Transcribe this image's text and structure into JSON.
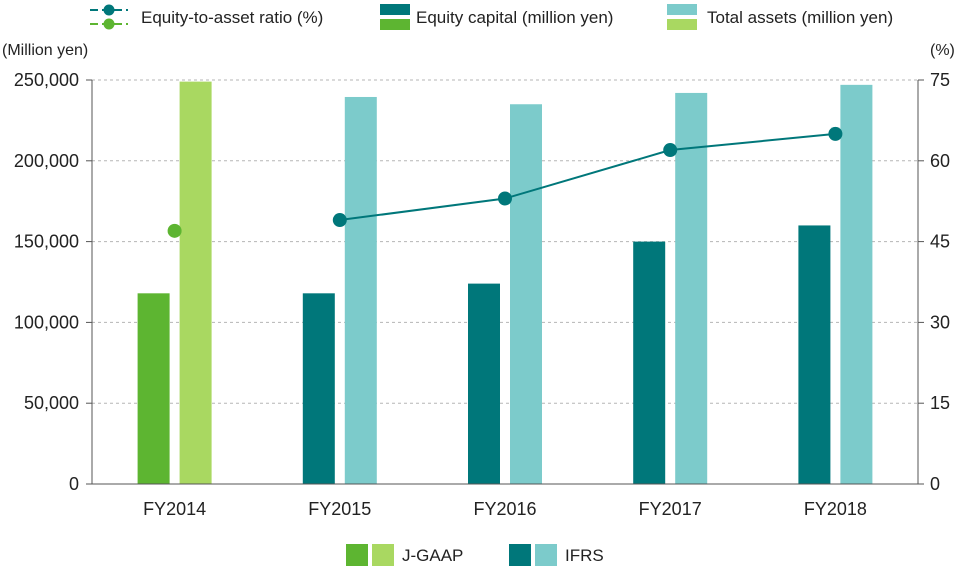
{
  "chart_data": {
    "type": "bar",
    "categories": [
      "FY2014",
      "FY2015",
      "FY2016",
      "FY2017",
      "FY2018"
    ],
    "standards": [
      "J-GAAP",
      "IFRS",
      "IFRS",
      "IFRS",
      "IFRS"
    ],
    "series": [
      {
        "name": "Equity capital (million yen)",
        "axis": "left",
        "kind": "bar",
        "values": [
          118000,
          118000,
          124000,
          150000,
          160000
        ]
      },
      {
        "name": "Total assets (million yen)",
        "axis": "left",
        "kind": "bar",
        "values": [
          249000,
          239500,
          235000,
          242000,
          247000
        ]
      },
      {
        "name": "Equity-to-asset ratio (%)",
        "axis": "right",
        "kind": "line",
        "values": [
          47,
          49,
          53,
          62,
          65
        ]
      }
    ],
    "left_axis": {
      "label": "(Million yen)",
      "ylim": [
        0,
        250000
      ],
      "ticks": [
        0,
        50000,
        100000,
        150000,
        200000,
        250000
      ],
      "tick_labels": [
        "0",
        "50,000",
        "100,000",
        "150,000",
        "200,000",
        "250,000"
      ]
    },
    "right_axis": {
      "label": "(%)",
      "ylim": [
        0,
        75
      ],
      "ticks": [
        0,
        15,
        30,
        45,
        60,
        75
      ],
      "tick_labels": [
        "0",
        "15",
        "30",
        "45",
        "60",
        "75"
      ]
    },
    "legend_top": [
      "Equity-to-asset ratio (%)",
      "Equity capital (million yen)",
      "Total assets (million yen)"
    ],
    "legend_bottom": [
      "J-GAAP",
      "IFRS"
    ],
    "colors": {
      "jgaap_dark": "#5db531",
      "jgaap_light": "#a9d861",
      "ifrs_dark": "#00777a",
      "ifrs_light": "#7ccbcb",
      "grid": "#b5b5b5",
      "axis": "#555555"
    },
    "grid": true
  }
}
